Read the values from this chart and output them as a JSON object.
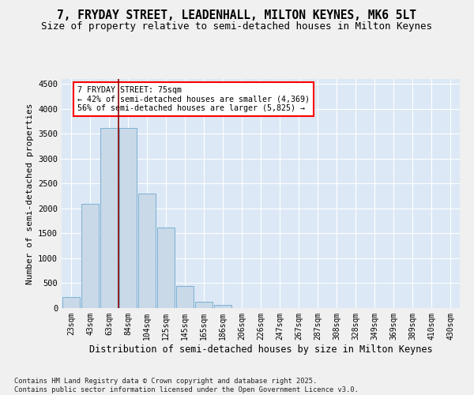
{
  "title_line1": "7, FRYDAY STREET, LEADENHALL, MILTON KEYNES, MK6 5LT",
  "title_line2": "Size of property relative to semi-detached houses in Milton Keynes",
  "xlabel": "Distribution of semi-detached houses by size in Milton Keynes",
  "ylabel": "Number of semi-detached properties",
  "footer": "Contains HM Land Registry data © Crown copyright and database right 2025.\nContains public sector information licensed under the Open Government Licence v3.0.",
  "categories": [
    "23sqm",
    "43sqm",
    "63sqm",
    "84sqm",
    "104sqm",
    "125sqm",
    "145sqm",
    "165sqm",
    "186sqm",
    "206sqm",
    "226sqm",
    "247sqm",
    "267sqm",
    "287sqm",
    "308sqm",
    "328sqm",
    "349sqm",
    "369sqm",
    "389sqm",
    "410sqm",
    "430sqm"
  ],
  "values": [
    230,
    2100,
    3620,
    3620,
    2300,
    1620,
    450,
    120,
    60,
    0,
    0,
    0,
    0,
    0,
    0,
    0,
    0,
    0,
    0,
    0,
    0
  ],
  "bar_color": "#c9d9e8",
  "bar_edge_color": "#7bafd4",
  "red_line_x": 2.5,
  "annotation_text": "7 FRYDAY STREET: 75sqm\n← 42% of semi-detached houses are smaller (4,369)\n56% of semi-detached houses are larger (5,825) →",
  "ylim": [
    0,
    4600
  ],
  "yticks": [
    0,
    500,
    1000,
    1500,
    2000,
    2500,
    3000,
    3500,
    4000,
    4500
  ],
  "bg_color": "#dce8f5",
  "grid_color": "#ffffff",
  "fig_bg_color": "#f0f0f0"
}
